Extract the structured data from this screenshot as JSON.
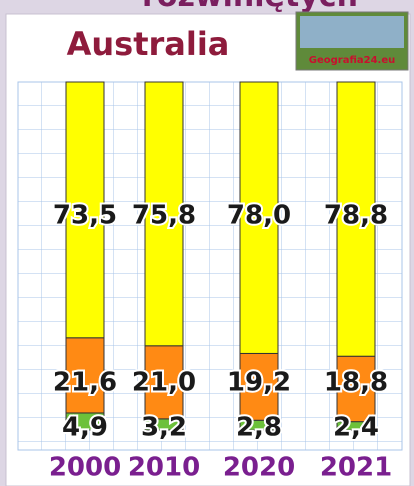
{
  "header": {
    "subtitle": "rozwiniętych",
    "logo_text": "Geografia24.eu"
  },
  "chart_data": {
    "type": "bar",
    "stacked": true,
    "title": "Australia",
    "categories": [
      "2000",
      "2010",
      "2020",
      "2021"
    ],
    "ylim": [
      0,
      100
    ],
    "series": [
      {
        "color": "#6cc13a",
        "values": [
          4.9,
          3.2,
          2.8,
          2.4
        ],
        "value_labels": [
          "4,9",
          "3,2",
          "2,8",
          "2,4"
        ]
      },
      {
        "color": "#ff8a14",
        "values": [
          21.6,
          21.0,
          19.2,
          18.8
        ],
        "value_labels": [
          "21,6",
          "21,0",
          "19,2",
          "18,8"
        ]
      },
      {
        "color": "#ffff00",
        "values": [
          73.5,
          75.8,
          78.0,
          78.8
        ],
        "value_labels": [
          "73,5",
          "75,8",
          "78,0",
          "78,8"
        ]
      }
    ]
  }
}
